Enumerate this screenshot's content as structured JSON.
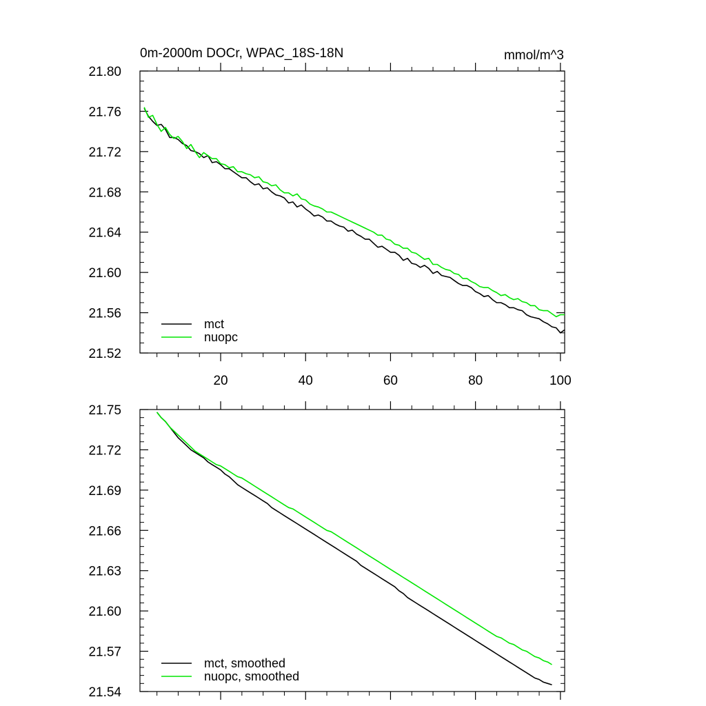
{
  "figure": {
    "title": "0m-2000m DOCr, WPAC_18S-18N",
    "units": "mmol/m^3"
  },
  "chart_data": [
    {
      "type": "line",
      "title": "0m-2000m DOCr, WPAC_18S-18N",
      "units_label": "mmol/m^3",
      "xlabel": "",
      "ylabel": "",
      "xlim": [
        1,
        101
      ],
      "ylim": [
        21.52,
        21.8
      ],
      "xticks": [
        20,
        40,
        60,
        80,
        100
      ],
      "xtick_labels": [
        "20",
        "40",
        "60",
        "80",
        "100"
      ],
      "yticks": [
        21.52,
        21.56,
        21.6,
        21.64,
        21.68,
        21.72,
        21.76,
        21.8
      ],
      "ytick_labels": [
        "21.52",
        "21.56",
        "21.60",
        "21.64",
        "21.68",
        "21.72",
        "21.76",
        "21.80"
      ],
      "grid": false,
      "legend_position": "bottom-left",
      "series": [
        {
          "name": "mct",
          "color": "#000000",
          "x": [
            2,
            3,
            4,
            5,
            6,
            7,
            8,
            9,
            10,
            11,
            12,
            13,
            14,
            15,
            16,
            17,
            18,
            19,
            20,
            21,
            22,
            23,
            24,
            25,
            26,
            27,
            28,
            29,
            30,
            31,
            32,
            33,
            34,
            35,
            36,
            37,
            38,
            39,
            40,
            41,
            42,
            43,
            44,
            45,
            46,
            47,
            48,
            49,
            50,
            51,
            52,
            53,
            54,
            55,
            56,
            57,
            58,
            59,
            60,
            61,
            62,
            63,
            64,
            65,
            66,
            67,
            68,
            69,
            70,
            71,
            72,
            73,
            74,
            75,
            76,
            77,
            78,
            79,
            80,
            81,
            82,
            83,
            84,
            85,
            86,
            87,
            88,
            89,
            90,
            91,
            92,
            93,
            94,
            95,
            96,
            97,
            98,
            99,
            100,
            101
          ],
          "y": [
            21.763,
            21.755,
            21.75,
            21.746,
            21.747,
            21.742,
            21.734,
            21.734,
            21.732,
            21.728,
            21.726,
            21.721,
            21.72,
            21.718,
            21.714,
            21.716,
            21.709,
            21.71,
            21.707,
            21.703,
            21.703,
            21.7,
            21.697,
            21.694,
            21.694,
            21.69,
            21.687,
            21.688,
            21.683,
            21.684,
            21.68,
            21.677,
            21.676,
            21.674,
            21.669,
            21.67,
            21.665,
            21.667,
            21.663,
            21.66,
            21.656,
            21.657,
            21.655,
            21.651,
            21.651,
            21.648,
            21.646,
            21.645,
            21.641,
            21.642,
            21.638,
            21.636,
            21.633,
            21.633,
            21.629,
            21.625,
            21.626,
            21.623,
            21.62,
            21.62,
            21.617,
            21.612,
            21.614,
            21.609,
            21.608,
            21.605,
            21.607,
            21.604,
            21.599,
            21.601,
            21.597,
            21.596,
            21.595,
            21.592,
            21.589,
            21.587,
            21.587,
            21.585,
            21.581,
            21.579,
            21.576,
            21.577,
            21.573,
            21.57,
            21.57,
            21.568,
            21.565,
            21.565,
            21.563,
            21.562,
            21.558,
            21.556,
            21.555,
            21.554,
            21.551,
            21.549,
            21.546,
            21.545,
            21.54,
            21.543
          ]
        },
        {
          "name": "nuopc",
          "color": "#00e600",
          "x": [
            2,
            3,
            4,
            5,
            6,
            7,
            8,
            9,
            10,
            11,
            12,
            13,
            14,
            15,
            16,
            17,
            18,
            19,
            20,
            21,
            22,
            23,
            24,
            25,
            26,
            27,
            28,
            29,
            30,
            31,
            32,
            33,
            34,
            35,
            36,
            37,
            38,
            39,
            40,
            41,
            42,
            43,
            44,
            45,
            46,
            47,
            48,
            49,
            50,
            51,
            52,
            53,
            54,
            55,
            56,
            57,
            58,
            59,
            60,
            61,
            62,
            63,
            64,
            65,
            66,
            67,
            68,
            69,
            70,
            71,
            72,
            73,
            74,
            75,
            76,
            77,
            78,
            79,
            80,
            81,
            82,
            83,
            84,
            85,
            86,
            87,
            88,
            89,
            90,
            91,
            92,
            93,
            94,
            95,
            96,
            97,
            98,
            99,
            100,
            101
          ],
          "y": [
            21.764,
            21.754,
            21.756,
            21.747,
            21.74,
            21.744,
            21.737,
            21.733,
            21.735,
            21.73,
            21.723,
            21.727,
            21.72,
            21.714,
            21.719,
            21.716,
            21.713,
            21.713,
            21.708,
            21.707,
            21.704,
            21.705,
            21.7,
            21.7,
            21.698,
            21.697,
            21.694,
            21.695,
            21.69,
            21.689,
            21.686,
            21.687,
            21.682,
            21.679,
            21.679,
            21.676,
            21.678,
            21.673,
            21.672,
            21.668,
            21.666,
            21.665,
            21.663,
            21.66,
            21.66,
            21.658,
            21.656,
            21.654,
            21.652,
            21.65,
            21.648,
            21.646,
            21.644,
            21.642,
            21.64,
            21.637,
            21.637,
            21.633,
            21.632,
            21.628,
            21.627,
            21.624,
            21.624,
            21.62,
            21.619,
            21.616,
            21.613,
            21.614,
            21.608,
            21.608,
            21.605,
            21.603,
            21.602,
            21.599,
            21.598,
            21.594,
            21.594,
            21.591,
            21.589,
            21.586,
            21.585,
            21.585,
            21.582,
            21.58,
            21.577,
            21.578,
            21.575,
            21.573,
            21.574,
            21.571,
            21.57,
            21.567,
            21.567,
            21.563,
            21.562,
            21.562,
            21.559,
            21.556,
            21.558,
            21.558
          ]
        }
      ]
    },
    {
      "type": "line",
      "title": "",
      "xlabel": "",
      "ylabel": "",
      "xlim": [
        1,
        101
      ],
      "ylim": [
        21.54,
        21.75
      ],
      "xticks": [
        20,
        40,
        60,
        80,
        100
      ],
      "xtick_labels": [],
      "yticks": [
        21.54,
        21.57,
        21.6,
        21.63,
        21.66,
        21.69,
        21.72,
        21.75
      ],
      "ytick_labels": [
        "21.54",
        "21.57",
        "21.60",
        "21.63",
        "21.66",
        "21.69",
        "21.72",
        "21.75"
      ],
      "grid": false,
      "legend_position": "bottom-left",
      "series": [
        {
          "name": "mct, smoothed",
          "color": "#000000",
          "x": [
            5,
            6,
            7,
            8,
            9,
            10,
            11,
            12,
            13,
            14,
            15,
            16,
            17,
            18,
            19,
            20,
            21,
            22,
            23,
            24,
            25,
            26,
            27,
            28,
            29,
            30,
            31,
            32,
            33,
            34,
            35,
            36,
            37,
            38,
            39,
            40,
            41,
            42,
            43,
            44,
            45,
            46,
            47,
            48,
            49,
            50,
            51,
            52,
            53,
            54,
            55,
            56,
            57,
            58,
            59,
            60,
            61,
            62,
            63,
            64,
            65,
            66,
            67,
            68,
            69,
            70,
            71,
            72,
            73,
            74,
            75,
            76,
            77,
            78,
            79,
            80,
            81,
            82,
            83,
            84,
            85,
            86,
            87,
            88,
            89,
            90,
            91,
            92,
            93,
            94,
            95,
            96,
            97,
            98
          ],
          "y": [
            21.748,
            21.744,
            21.741,
            21.737,
            21.733,
            21.729,
            21.726,
            21.723,
            21.72,
            21.718,
            21.716,
            21.714,
            21.711,
            21.709,
            21.707,
            21.705,
            21.702,
            21.7,
            21.697,
            21.694,
            21.692,
            21.69,
            21.688,
            21.686,
            21.684,
            21.682,
            21.68,
            21.677,
            21.675,
            21.673,
            21.671,
            21.669,
            21.667,
            21.665,
            21.663,
            21.661,
            21.659,
            21.657,
            21.655,
            21.653,
            21.651,
            21.649,
            21.647,
            21.645,
            21.643,
            21.641,
            21.639,
            21.637,
            21.634,
            21.632,
            21.63,
            21.628,
            21.626,
            21.624,
            21.622,
            21.62,
            21.618,
            21.615,
            21.613,
            21.61,
            21.608,
            21.606,
            21.604,
            21.602,
            21.6,
            21.598,
            21.596,
            21.594,
            21.592,
            21.59,
            21.588,
            21.586,
            21.584,
            21.582,
            21.58,
            21.578,
            21.576,
            21.574,
            21.572,
            21.57,
            21.568,
            21.566,
            21.564,
            21.562,
            21.56,
            21.558,
            21.556,
            21.554,
            21.552,
            21.55,
            21.549,
            21.547,
            21.546,
            21.545
          ]
        },
        {
          "name": "nuopc, smoothed",
          "color": "#00e600",
          "x": [
            5,
            6,
            7,
            8,
            9,
            10,
            11,
            12,
            13,
            14,
            15,
            16,
            17,
            18,
            19,
            20,
            21,
            22,
            23,
            24,
            25,
            26,
            27,
            28,
            29,
            30,
            31,
            32,
            33,
            34,
            35,
            36,
            37,
            38,
            39,
            40,
            41,
            42,
            43,
            44,
            45,
            46,
            47,
            48,
            49,
            50,
            51,
            52,
            53,
            54,
            55,
            56,
            57,
            58,
            59,
            60,
            61,
            62,
            63,
            64,
            65,
            66,
            67,
            68,
            69,
            70,
            71,
            72,
            73,
            74,
            75,
            76,
            77,
            78,
            79,
            80,
            81,
            82,
            83,
            84,
            85,
            86,
            87,
            88,
            89,
            90,
            91,
            92,
            93,
            94,
            95,
            96,
            97,
            98
          ],
          "y": [
            21.748,
            21.744,
            21.741,
            21.737,
            21.734,
            21.731,
            21.728,
            21.725,
            21.722,
            21.719,
            21.717,
            21.715,
            21.713,
            21.711,
            21.709,
            21.708,
            21.706,
            21.704,
            21.702,
            21.7,
            21.699,
            21.697,
            21.695,
            21.693,
            21.691,
            21.689,
            21.687,
            21.685,
            21.683,
            21.681,
            21.679,
            21.677,
            21.676,
            21.674,
            21.672,
            21.67,
            21.668,
            21.666,
            21.664,
            21.662,
            21.66,
            21.659,
            21.657,
            21.655,
            21.653,
            21.651,
            21.649,
            21.647,
            21.645,
            21.643,
            21.641,
            21.639,
            21.637,
            21.635,
            21.633,
            21.631,
            21.629,
            21.627,
            21.625,
            21.623,
            21.621,
            21.619,
            21.617,
            21.615,
            21.613,
            21.611,
            21.609,
            21.607,
            21.605,
            21.603,
            21.601,
            21.599,
            21.597,
            21.595,
            21.593,
            21.591,
            21.589,
            21.587,
            21.585,
            21.583,
            21.581,
            21.58,
            21.578,
            21.576,
            21.575,
            21.573,
            21.571,
            21.57,
            21.568,
            21.566,
            21.565,
            21.563,
            21.562,
            21.56
          ]
        }
      ]
    }
  ]
}
